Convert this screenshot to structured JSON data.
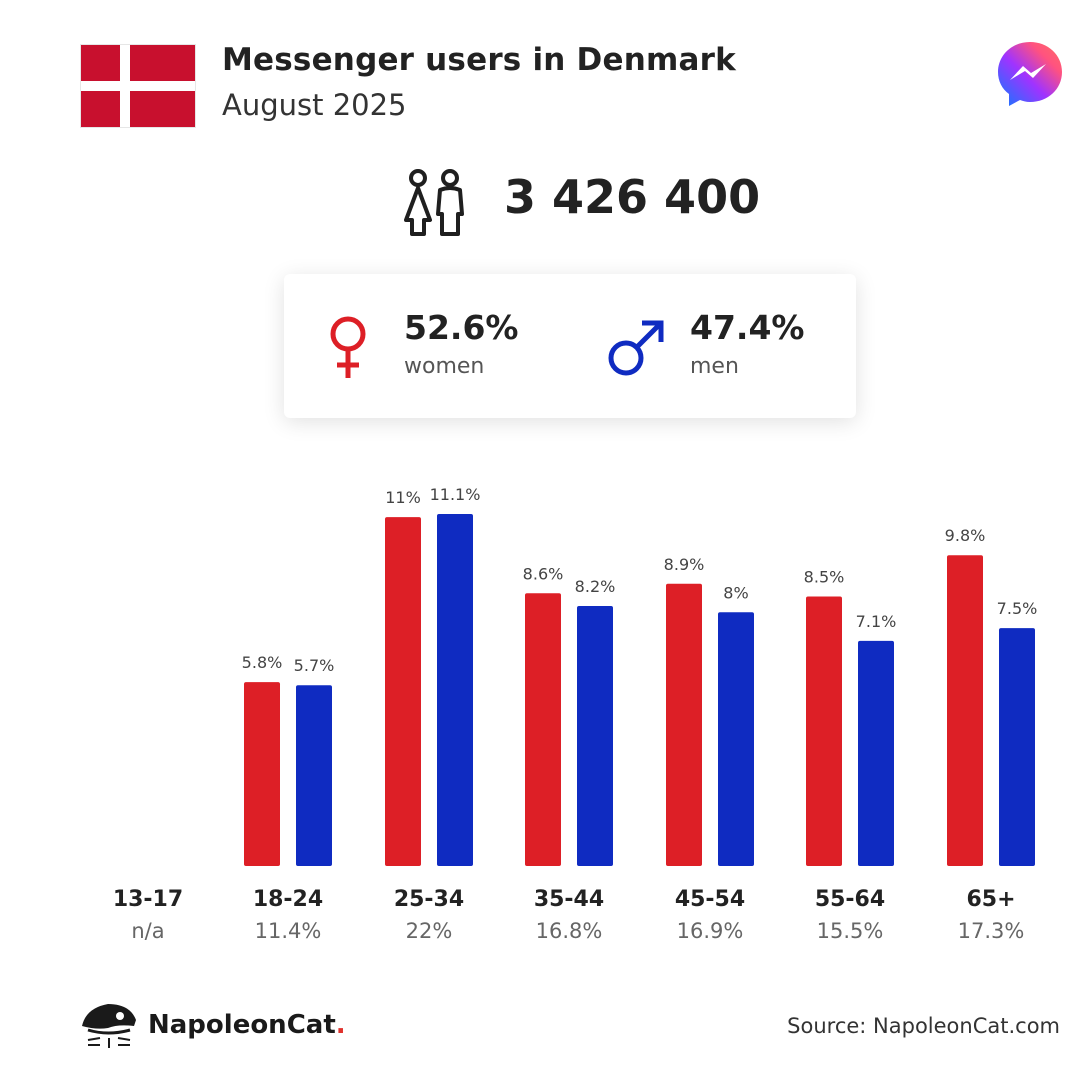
{
  "header": {
    "title": "Messenger users in Denmark",
    "subtitle": "August 2025"
  },
  "summary": {
    "total_users": "3 426 400"
  },
  "gender": {
    "women": {
      "pct": "52.6%",
      "label": "women"
    },
    "men": {
      "pct": "47.4%",
      "label": "men"
    }
  },
  "colors": {
    "women": "#dd1f26",
    "men": "#0f2bc1",
    "flag_red": "#c8102e"
  },
  "chart_data": {
    "type": "bar",
    "categories": [
      "13-17",
      "18-24",
      "25-34",
      "35-44",
      "45-54",
      "55-64",
      "65+"
    ],
    "category_shares": [
      "n/a",
      "11.4%",
      "22%",
      "16.8%",
      "16.9%",
      "15.5%",
      "17.3%"
    ],
    "series": [
      {
        "name": "women",
        "values": [
          null,
          5.8,
          11,
          8.6,
          8.9,
          8.5,
          9.8
        ],
        "labels": [
          "",
          "5.8%",
          "11%",
          "8.6%",
          "8.9%",
          "8.5%",
          "9.8%"
        ]
      },
      {
        "name": "men",
        "values": [
          null,
          5.7,
          11.1,
          8.2,
          8,
          7.1,
          7.5
        ],
        "labels": [
          "",
          "5.7%",
          "11.1%",
          "8.2%",
          "8%",
          "7.1%",
          "7.5%"
        ]
      }
    ],
    "ylim": [
      0,
      11.1
    ],
    "grid": false
  },
  "footer": {
    "brand_name": "NapoleonCat",
    "brand_dot": ".",
    "source": "Source: NapoleonCat.com"
  }
}
